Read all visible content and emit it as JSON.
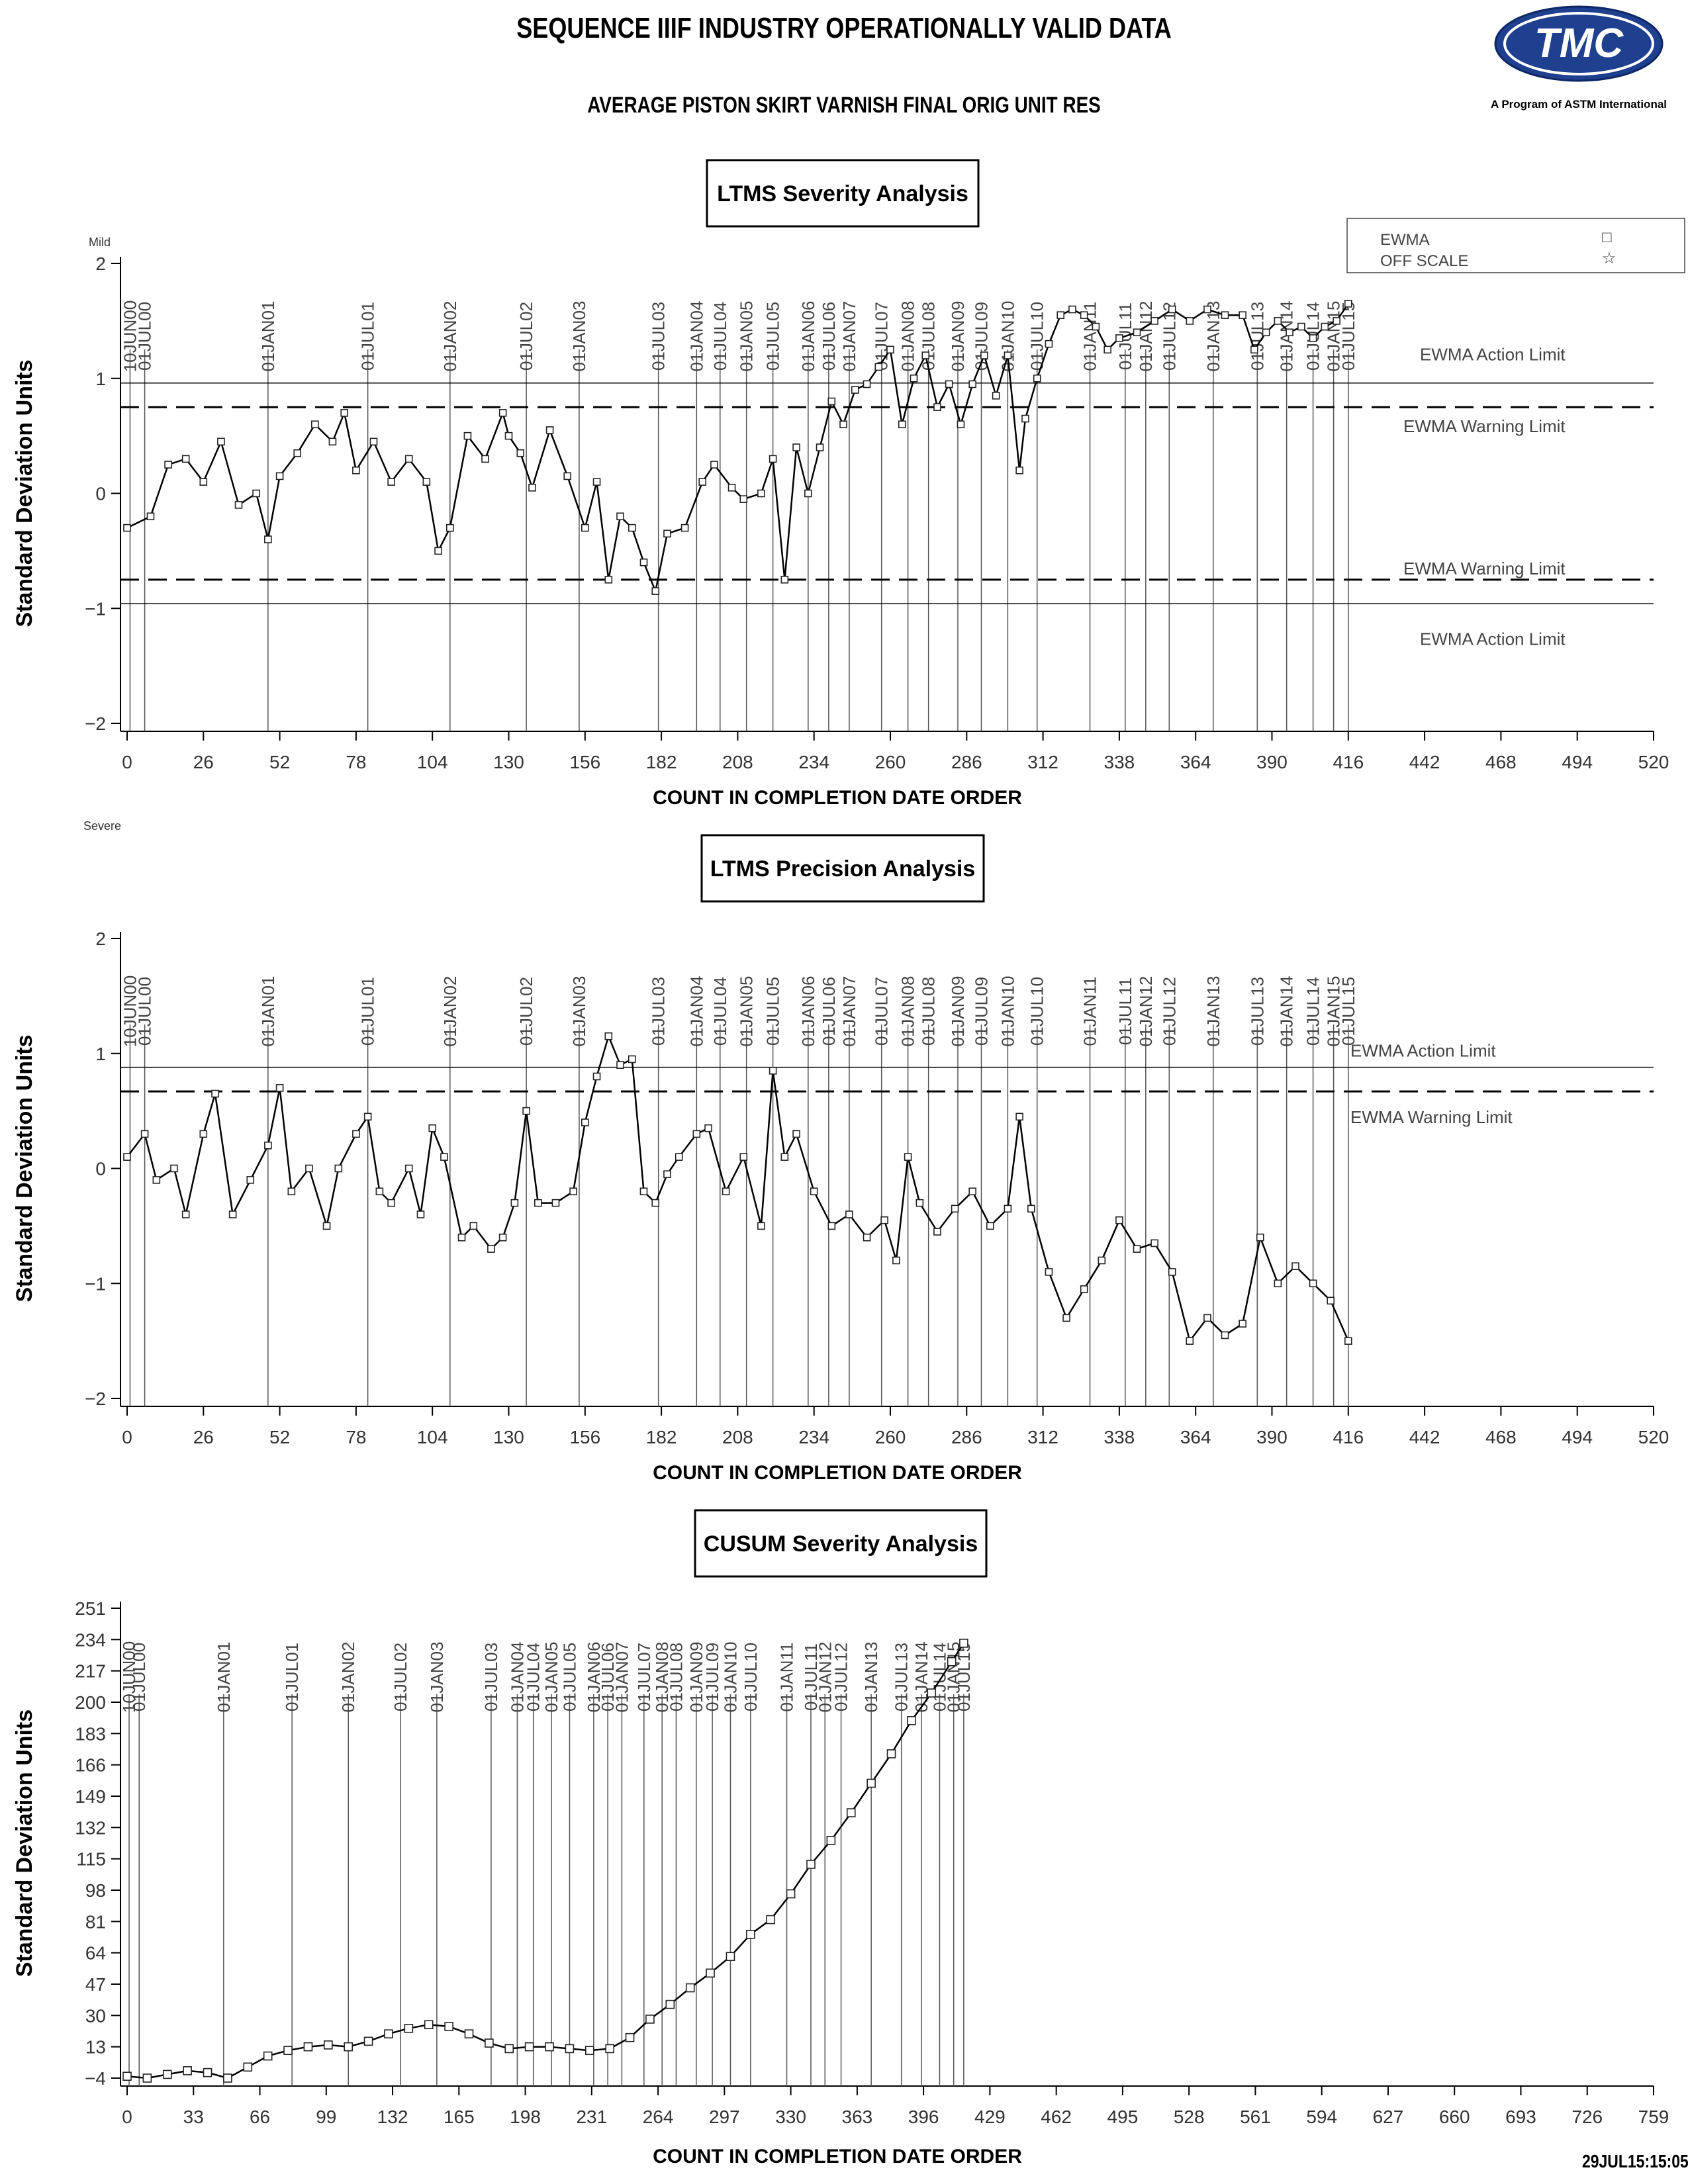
{
  "header": {
    "title": "SEQUENCE IIIF INDUSTRY OPERATIONALLY VALID DATA",
    "subtitle": "AVERAGE PISTON SKIRT VARNISH FINAL ORIG UNIT RES",
    "logo_text": "TMC",
    "logo_caption": "A Program of ASTM International",
    "timestamp": "29JUL15:15:05"
  },
  "legend": {
    "items": [
      {
        "label": "EWMA",
        "symbol": "□"
      },
      {
        "label": "OFF SCALE",
        "symbol": "☆"
      }
    ]
  },
  "chart_data": [
    {
      "type": "line",
      "title": "LTMS Severity Analysis",
      "xlabel": "COUNT IN COMPLETION DATE ORDER",
      "ylabel": "Standard Deviation Units",
      "top_note": "Mild",
      "bottom_note": "Severe",
      "xlim": [
        0,
        520
      ],
      "ylim": [
        -2,
        2
      ],
      "xticks": [
        0,
        26,
        52,
        78,
        104,
        130,
        156,
        182,
        208,
        234,
        260,
        286,
        312,
        338,
        364,
        390,
        416,
        442,
        468,
        494,
        520
      ],
      "yticks": [
        2,
        1,
        0,
        -1,
        -2
      ],
      "limits": [
        {
          "label": "EWMA Action Limit",
          "value": 0.96,
          "style": "solid"
        },
        {
          "label": "EWMA Warning Limit",
          "value": 0.75,
          "style": "dashed"
        },
        {
          "label": "EWMA Warning Limit",
          "value": -0.75,
          "style": "dashed"
        },
        {
          "label": "EWMA Action Limit",
          "value": -0.96,
          "style": "solid"
        }
      ],
      "date_markers": [
        {
          "label": "10JUN00",
          "x": 1
        },
        {
          "label": "01JUL00",
          "x": 6
        },
        {
          "label": "01JAN01",
          "x": 48
        },
        {
          "label": "01JUL01",
          "x": 82
        },
        {
          "label": "01JAN02",
          "x": 110
        },
        {
          "label": "01JUL02",
          "x": 136
        },
        {
          "label": "01JAN03",
          "x": 154
        },
        {
          "label": "01JUL03",
          "x": 181
        },
        {
          "label": "01JAN04",
          "x": 194
        },
        {
          "label": "01JUL04",
          "x": 202
        },
        {
          "label": "01JAN05",
          "x": 211
        },
        {
          "label": "01JUL05",
          "x": 220
        },
        {
          "label": "01JAN06",
          "x": 232
        },
        {
          "label": "01JUL06",
          "x": 239
        },
        {
          "label": "01JAN07",
          "x": 246
        },
        {
          "label": "01JUL07",
          "x": 257
        },
        {
          "label": "01JAN08",
          "x": 266
        },
        {
          "label": "01JUL08",
          "x": 273
        },
        {
          "label": "01JAN09",
          "x": 283
        },
        {
          "label": "01JUL09",
          "x": 291
        },
        {
          "label": "01JAN10",
          "x": 300
        },
        {
          "label": "01JUL10",
          "x": 310
        },
        {
          "label": "01JAN11",
          "x": 328
        },
        {
          "label": "01JUL11",
          "x": 340
        },
        {
          "label": "01JAN12",
          "x": 347
        },
        {
          "label": "01JUL12",
          "x": 355
        },
        {
          "label": "01JAN13",
          "x": 370
        },
        {
          "label": "01JUL13",
          "x": 385
        },
        {
          "label": "01JAN14",
          "x": 395
        },
        {
          "label": "01JUL14",
          "x": 404
        },
        {
          "label": "01JAN15",
          "x": 411
        },
        {
          "label": "01JUL15",
          "x": 416
        }
      ],
      "series": [
        {
          "marker": "square",
          "x": [
            0,
            8,
            14,
            20,
            26,
            32,
            38,
            44,
            48,
            52,
            58,
            64,
            70,
            74,
            78,
            84,
            90,
            96,
            102,
            106,
            110,
            116,
            122,
            128,
            130,
            134,
            138,
            144,
            150,
            156,
            160,
            164,
            168,
            172,
            176,
            180,
            184,
            190,
            196,
            200,
            206,
            210,
            216,
            220,
            224,
            228,
            232,
            236,
            240,
            244,
            248,
            252,
            256,
            260,
            264,
            268,
            272,
            276,
            280,
            284,
            288,
            292,
            296,
            300,
            304,
            306,
            310,
            314,
            318,
            322,
            326,
            330,
            334,
            338,
            344,
            350,
            356,
            362,
            368,
            374,
            380,
            384,
            388,
            392,
            396,
            400,
            404,
            408,
            412,
            416
          ],
          "y": [
            -0.3,
            -0.2,
            0.25,
            0.3,
            0.1,
            0.45,
            -0.1,
            0.0,
            -0.4,
            0.15,
            0.35,
            0.6,
            0.45,
            0.7,
            0.2,
            0.45,
            0.1,
            0.3,
            0.1,
            -0.5,
            -0.3,
            0.5,
            0.3,
            0.7,
            0.5,
            0.35,
            0.05,
            0.55,
            0.15,
            -0.3,
            0.1,
            -0.75,
            -0.2,
            -0.3,
            -0.6,
            -0.85,
            -0.35,
            -0.3,
            0.1,
            0.25,
            0.05,
            -0.05,
            0.0,
            0.3,
            -0.75,
            0.4,
            0.0,
            0.4,
            0.8,
            0.6,
            0.9,
            0.95,
            1.1,
            1.25,
            0.6,
            1.0,
            1.2,
            0.75,
            0.95,
            0.6,
            0.95,
            1.2,
            0.85,
            1.2,
            0.2,
            0.65,
            1.0,
            1.3,
            1.55,
            1.6,
            1.55,
            1.45,
            1.25,
            1.35,
            1.4,
            1.5,
            1.6,
            1.5,
            1.6,
            1.55,
            1.55,
            1.25,
            1.4,
            1.5,
            1.4,
            1.45,
            1.35,
            1.45,
            1.5,
            1.65
          ]
        }
      ]
    },
    {
      "type": "line",
      "title": "LTMS Precision Analysis",
      "xlabel": "COUNT IN COMPLETION DATE ORDER",
      "ylabel": "Standard Deviation Units",
      "xlim": [
        0,
        520
      ],
      "ylim": [
        -2,
        2
      ],
      "xticks": [
        0,
        26,
        52,
        78,
        104,
        130,
        156,
        182,
        208,
        234,
        260,
        286,
        312,
        338,
        364,
        390,
        416,
        442,
        468,
        494,
        520
      ],
      "yticks": [
        2,
        1,
        0,
        -1,
        -2
      ],
      "limits": [
        {
          "label": "EWMA Action Limit",
          "value": 0.88,
          "style": "solid"
        },
        {
          "label": "EWMA Warning Limit",
          "value": 0.67,
          "style": "dashed"
        }
      ],
      "date_markers": [
        {
          "label": "10JUN00",
          "x": 1
        },
        {
          "label": "01JUL00",
          "x": 6
        },
        {
          "label": "01JAN01",
          "x": 48
        },
        {
          "label": "01JUL01",
          "x": 82
        },
        {
          "label": "01JAN02",
          "x": 110
        },
        {
          "label": "01JUL02",
          "x": 136
        },
        {
          "label": "01JAN03",
          "x": 154
        },
        {
          "label": "01JUL03",
          "x": 181
        },
        {
          "label": "01JAN04",
          "x": 194
        },
        {
          "label": "01JUL04",
          "x": 202
        },
        {
          "label": "01JAN05",
          "x": 211
        },
        {
          "label": "01JUL05",
          "x": 220
        },
        {
          "label": "01JAN06",
          "x": 232
        },
        {
          "label": "01JUL06",
          "x": 239
        },
        {
          "label": "01JAN07",
          "x": 246
        },
        {
          "label": "01JUL07",
          "x": 257
        },
        {
          "label": "01JAN08",
          "x": 266
        },
        {
          "label": "01JUL08",
          "x": 273
        },
        {
          "label": "01JAN09",
          "x": 283
        },
        {
          "label": "01JUL09",
          "x": 291
        },
        {
          "label": "01JAN10",
          "x": 300
        },
        {
          "label": "01JUL10",
          "x": 310
        },
        {
          "label": "01JAN11",
          "x": 328
        },
        {
          "label": "01JUL11",
          "x": 340
        },
        {
          "label": "01JAN12",
          "x": 347
        },
        {
          "label": "01JUL12",
          "x": 355
        },
        {
          "label": "01JAN13",
          "x": 370
        },
        {
          "label": "01JUL13",
          "x": 385
        },
        {
          "label": "01JAN14",
          "x": 395
        },
        {
          "label": "01JUL14",
          "x": 404
        },
        {
          "label": "01JAN15",
          "x": 411
        },
        {
          "label": "01JUL15",
          "x": 416
        }
      ],
      "series": [
        {
          "marker": "square",
          "x": [
            0,
            6,
            10,
            16,
            20,
            26,
            30,
            36,
            42,
            48,
            52,
            56,
            62,
            68,
            72,
            78,
            82,
            86,
            90,
            96,
            100,
            104,
            108,
            114,
            118,
            124,
            128,
            132,
            136,
            140,
            146,
            152,
            156,
            160,
            164,
            168,
            172,
            176,
            180,
            184,
            188,
            194,
            198,
            204,
            210,
            216,
            220,
            224,
            228,
            234,
            240,
            246,
            252,
            258,
            262,
            266,
            270,
            276,
            282,
            288,
            294,
            300,
            304,
            308,
            314,
            320,
            326,
            332,
            338,
            344,
            350,
            356,
            362,
            368,
            374,
            380,
            386,
            392,
            398,
            404,
            410,
            416
          ],
          "y": [
            0.1,
            0.3,
            -0.1,
            0.0,
            -0.4,
            0.3,
            0.65,
            -0.4,
            -0.1,
            0.2,
            0.7,
            -0.2,
            0.0,
            -0.5,
            0.0,
            0.3,
            0.45,
            -0.2,
            -0.3,
            0.0,
            -0.4,
            0.35,
            0.1,
            -0.6,
            -0.5,
            -0.7,
            -0.6,
            -0.3,
            0.5,
            -0.3,
            -0.3,
            -0.2,
            0.4,
            0.8,
            1.15,
            0.9,
            0.95,
            -0.2,
            -0.3,
            -0.05,
            0.1,
            0.3,
            0.35,
            -0.2,
            0.1,
            -0.5,
            0.85,
            0.1,
            0.3,
            -0.2,
            -0.5,
            -0.4,
            -0.6,
            -0.45,
            -0.8,
            0.1,
            -0.3,
            -0.55,
            -0.35,
            -0.2,
            -0.5,
            -0.35,
            0.45,
            -0.35,
            -0.9,
            -1.3,
            -1.05,
            -0.8,
            -0.45,
            -0.7,
            -0.65,
            -0.9,
            -1.5,
            -1.3,
            -1.45,
            -1.35,
            -0.6,
            -1.0,
            -0.85,
            -1.0,
            -1.15,
            -1.5
          ]
        }
      ]
    },
    {
      "type": "line",
      "title": "CUSUM Severity Analysis",
      "xlabel": "COUNT IN COMPLETION DATE ORDER",
      "ylabel": "Standard Deviation Units",
      "xlim": [
        0,
        759
      ],
      "ylim": [
        -4,
        251
      ],
      "xticks": [
        0,
        33,
        66,
        99,
        132,
        165,
        198,
        231,
        264,
        297,
        330,
        363,
        396,
        429,
        462,
        495,
        528,
        561,
        594,
        627,
        660,
        693,
        726,
        759
      ],
      "yticks": [
        251,
        234,
        217,
        200,
        183,
        166,
        149,
        132,
        115,
        98,
        81,
        64,
        47,
        30,
        13,
        -4
      ],
      "date_markers": [
        {
          "label": "10JUN00",
          "x": 1
        },
        {
          "label": "01JUL00",
          "x": 6
        },
        {
          "label": "01JAN01",
          "x": 48
        },
        {
          "label": "01JUL01",
          "x": 82
        },
        {
          "label": "01JAN02",
          "x": 110
        },
        {
          "label": "01JUL02",
          "x": 136
        },
        {
          "label": "01JAN03",
          "x": 154
        },
        {
          "label": "01JUL03",
          "x": 181
        },
        {
          "label": "01JAN04",
          "x": 194
        },
        {
          "label": "01JUL04",
          "x": 202
        },
        {
          "label": "01JAN05",
          "x": 211
        },
        {
          "label": "01JUL05",
          "x": 220
        },
        {
          "label": "01JAN06",
          "x": 232
        },
        {
          "label": "01JUL06",
          "x": 239
        },
        {
          "label": "01JAN07",
          "x": 246
        },
        {
          "label": "01JUL07",
          "x": 257
        },
        {
          "label": "01JAN08",
          "x": 266
        },
        {
          "label": "01JUL08",
          "x": 273
        },
        {
          "label": "01JAN09",
          "x": 283
        },
        {
          "label": "01JUL09",
          "x": 291
        },
        {
          "label": "01JAN10",
          "x": 300
        },
        {
          "label": "01JUL10",
          "x": 310
        },
        {
          "label": "01JAN11",
          "x": 328
        },
        {
          "label": "01JUL11",
          "x": 340
        },
        {
          "label": "01JAN12",
          "x": 347
        },
        {
          "label": "01JUL12",
          "x": 355
        },
        {
          "label": "01JAN13",
          "x": 370
        },
        {
          "label": "01JUL13",
          "x": 385
        },
        {
          "label": "01JAN14",
          "x": 395
        },
        {
          "label": "01JUL14",
          "x": 404
        },
        {
          "label": "01JAN15",
          "x": 411
        },
        {
          "label": "01JUL15",
          "x": 416
        }
      ],
      "series": [
        {
          "marker": "square",
          "x": [
            0,
            10,
            20,
            30,
            40,
            50,
            60,
            70,
            80,
            90,
            100,
            110,
            120,
            130,
            140,
            150,
            160,
            170,
            180,
            190,
            200,
            210,
            220,
            230,
            240,
            250,
            260,
            270,
            280,
            290,
            300,
            310,
            320,
            330,
            340,
            350,
            360,
            370,
            380,
            390,
            400,
            410,
            416
          ],
          "y": [
            -3,
            -4,
            -2,
            0,
            -1,
            -4,
            2,
            8,
            11,
            13,
            14,
            13,
            16,
            20,
            23,
            25,
            24,
            20,
            15,
            12,
            13,
            13,
            12,
            11,
            12,
            18,
            28,
            36,
            45,
            53,
            62,
            74,
            82,
            96,
            112,
            125,
            140,
            156,
            172,
            190,
            205,
            222,
            232
          ]
        }
      ]
    }
  ]
}
